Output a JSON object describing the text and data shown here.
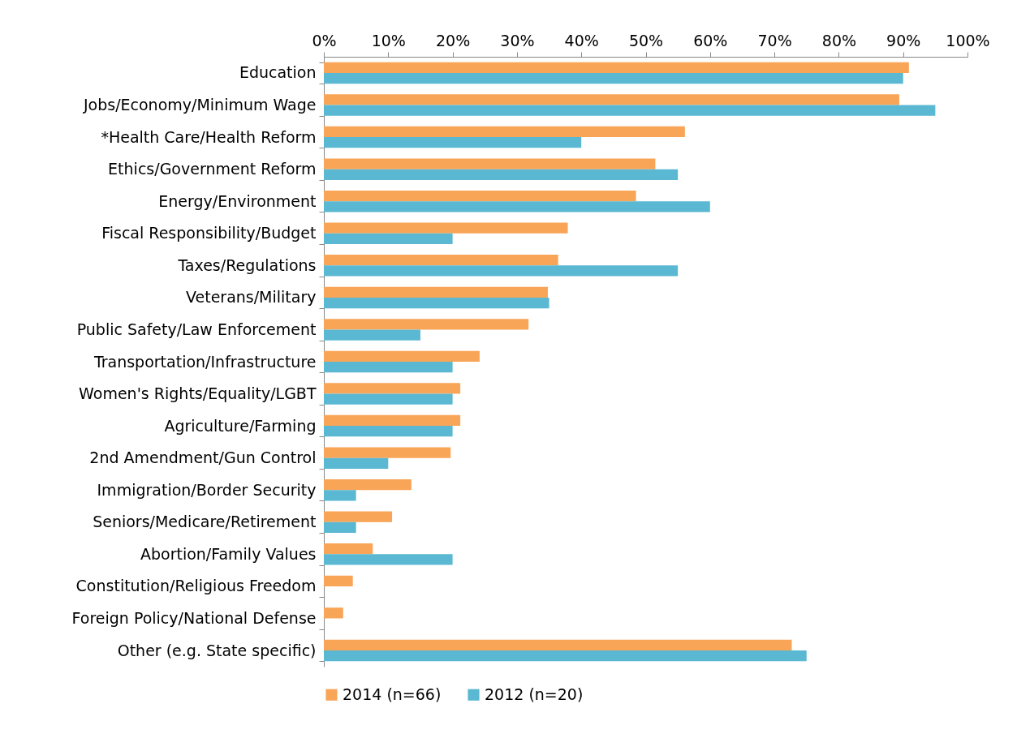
{
  "chart_data": {
    "type": "bar",
    "orientation": "horizontal",
    "categories": [
      "Education",
      "Jobs/Economy/Minimum Wage",
      "*Health Care/Health Reform",
      "Ethics/Government Reform",
      "Energy/Environment",
      "Fiscal Responsibility/Budget",
      "Taxes/Regulations",
      "Veterans/Military",
      "Public Safety/Law Enforcement",
      "Transportation/Infrastructure",
      "Women's Rights/Equality/LGBT",
      "Agriculture/Farming",
      "2nd Amendment/Gun Control",
      "Immigration/Border Security",
      "Seniors/Medicare/Retirement",
      "Abortion/Family Values",
      "Constitution/Religious Freedom",
      "Foreign Policy/National Defense",
      "Other (e.g. State specific)"
    ],
    "series": [
      {
        "name": "2014 (n=66)",
        "color": "#f9a557",
        "values": [
          90.9,
          89.4,
          56.1,
          51.5,
          48.5,
          37.9,
          36.4,
          34.8,
          31.8,
          24.2,
          21.2,
          21.2,
          19.7,
          13.6,
          10.6,
          7.6,
          4.5,
          3.0,
          72.7
        ]
      },
      {
        "name": "2012 (n=20)",
        "color": "#5ab8d2",
        "values": [
          90,
          95,
          40,
          55,
          60,
          20,
          55,
          35,
          15,
          20,
          20,
          20,
          10,
          5,
          5,
          20,
          null,
          null,
          75
        ]
      }
    ],
    "xlim": [
      0,
      100
    ],
    "xticks": [
      {
        "value": 0,
        "label": "0%"
      },
      {
        "value": 10,
        "label": "10%"
      },
      {
        "value": 20,
        "label": "20%"
      },
      {
        "value": 30,
        "label": "30%"
      },
      {
        "value": 40,
        "label": "40%"
      },
      {
        "value": 50,
        "label": "50%"
      },
      {
        "value": 60,
        "label": "60%"
      },
      {
        "value": 70,
        "label": "70%"
      },
      {
        "value": 80,
        "label": "80%"
      },
      {
        "value": 90,
        "label": "90%"
      },
      {
        "value": 100,
        "label": "100%"
      }
    ],
    "grid": false,
    "legend": "bottom"
  }
}
